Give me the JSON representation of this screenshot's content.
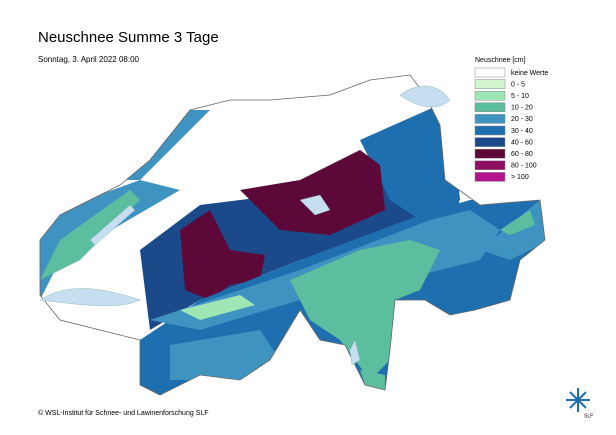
{
  "header": {
    "title": "Neuschnee Summe 3 Tage",
    "subtitle": "Sonntag, 3. April 2022 08:00"
  },
  "legend": {
    "title": "Neuschnee [cm]",
    "entries": [
      {
        "label": "keine Werte",
        "color": "#ffffff"
      },
      {
        "label": "0 - 5",
        "color": "#d2f5cf"
      },
      {
        "label": "5 - 10",
        "color": "#9fe6b5"
      },
      {
        "label": "10 - 20",
        "color": "#5bbf9f"
      },
      {
        "label": "20 - 30",
        "color": "#3e93c0"
      },
      {
        "label": "30 - 40",
        "color": "#1e6fb0"
      },
      {
        "label": "40 - 60",
        "color": "#1b4a8a"
      },
      {
        "label": "60 - 80",
        "color": "#5c0838"
      },
      {
        "label": "80 - 100",
        "color": "#8c0f62"
      },
      {
        "label": "> 100",
        "color": "#b2148e"
      }
    ]
  },
  "footer": {
    "copyright": "© WSL-Institut für Schnee- und Lawinenforschung SLF",
    "logo": "SLF"
  }
}
